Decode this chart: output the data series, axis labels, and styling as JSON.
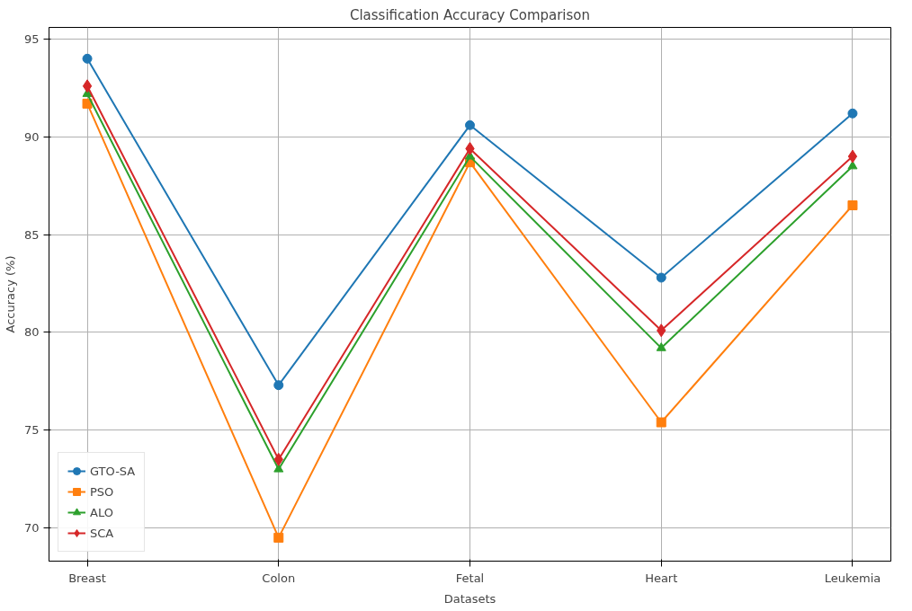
{
  "chart_data": {
    "type": "line",
    "title": "Classification Accuracy Comparison",
    "xlabel": "Datasets",
    "ylabel": "Accuracy (%)",
    "categories": [
      "Breast",
      "Colon",
      "Fetal",
      "Heart",
      "Leukemia"
    ],
    "series": [
      {
        "name": "GTO-SA",
        "color": "#1f77b4",
        "marker": "circle",
        "values": [
          94.0,
          77.3,
          90.6,
          82.8,
          91.2
        ]
      },
      {
        "name": "PSO",
        "color": "#ff7f0e",
        "marker": "square",
        "values": [
          91.7,
          69.5,
          88.7,
          75.4,
          86.5
        ]
      },
      {
        "name": "ALO",
        "color": "#2ca02c",
        "marker": "triangle",
        "values": [
          92.2,
          73.0,
          89.0,
          79.2,
          88.5
        ]
      },
      {
        "name": "SCA",
        "color": "#d62728",
        "marker": "diamond",
        "values": [
          92.6,
          73.5,
          89.4,
          80.1,
          89.0
        ]
      }
    ],
    "ylim": [
      68.3,
      95.6
    ],
    "yticks": [
      70,
      75,
      80,
      85,
      90,
      95
    ],
    "grid": true,
    "legend": "bottom left",
    "line_style": "solid"
  }
}
